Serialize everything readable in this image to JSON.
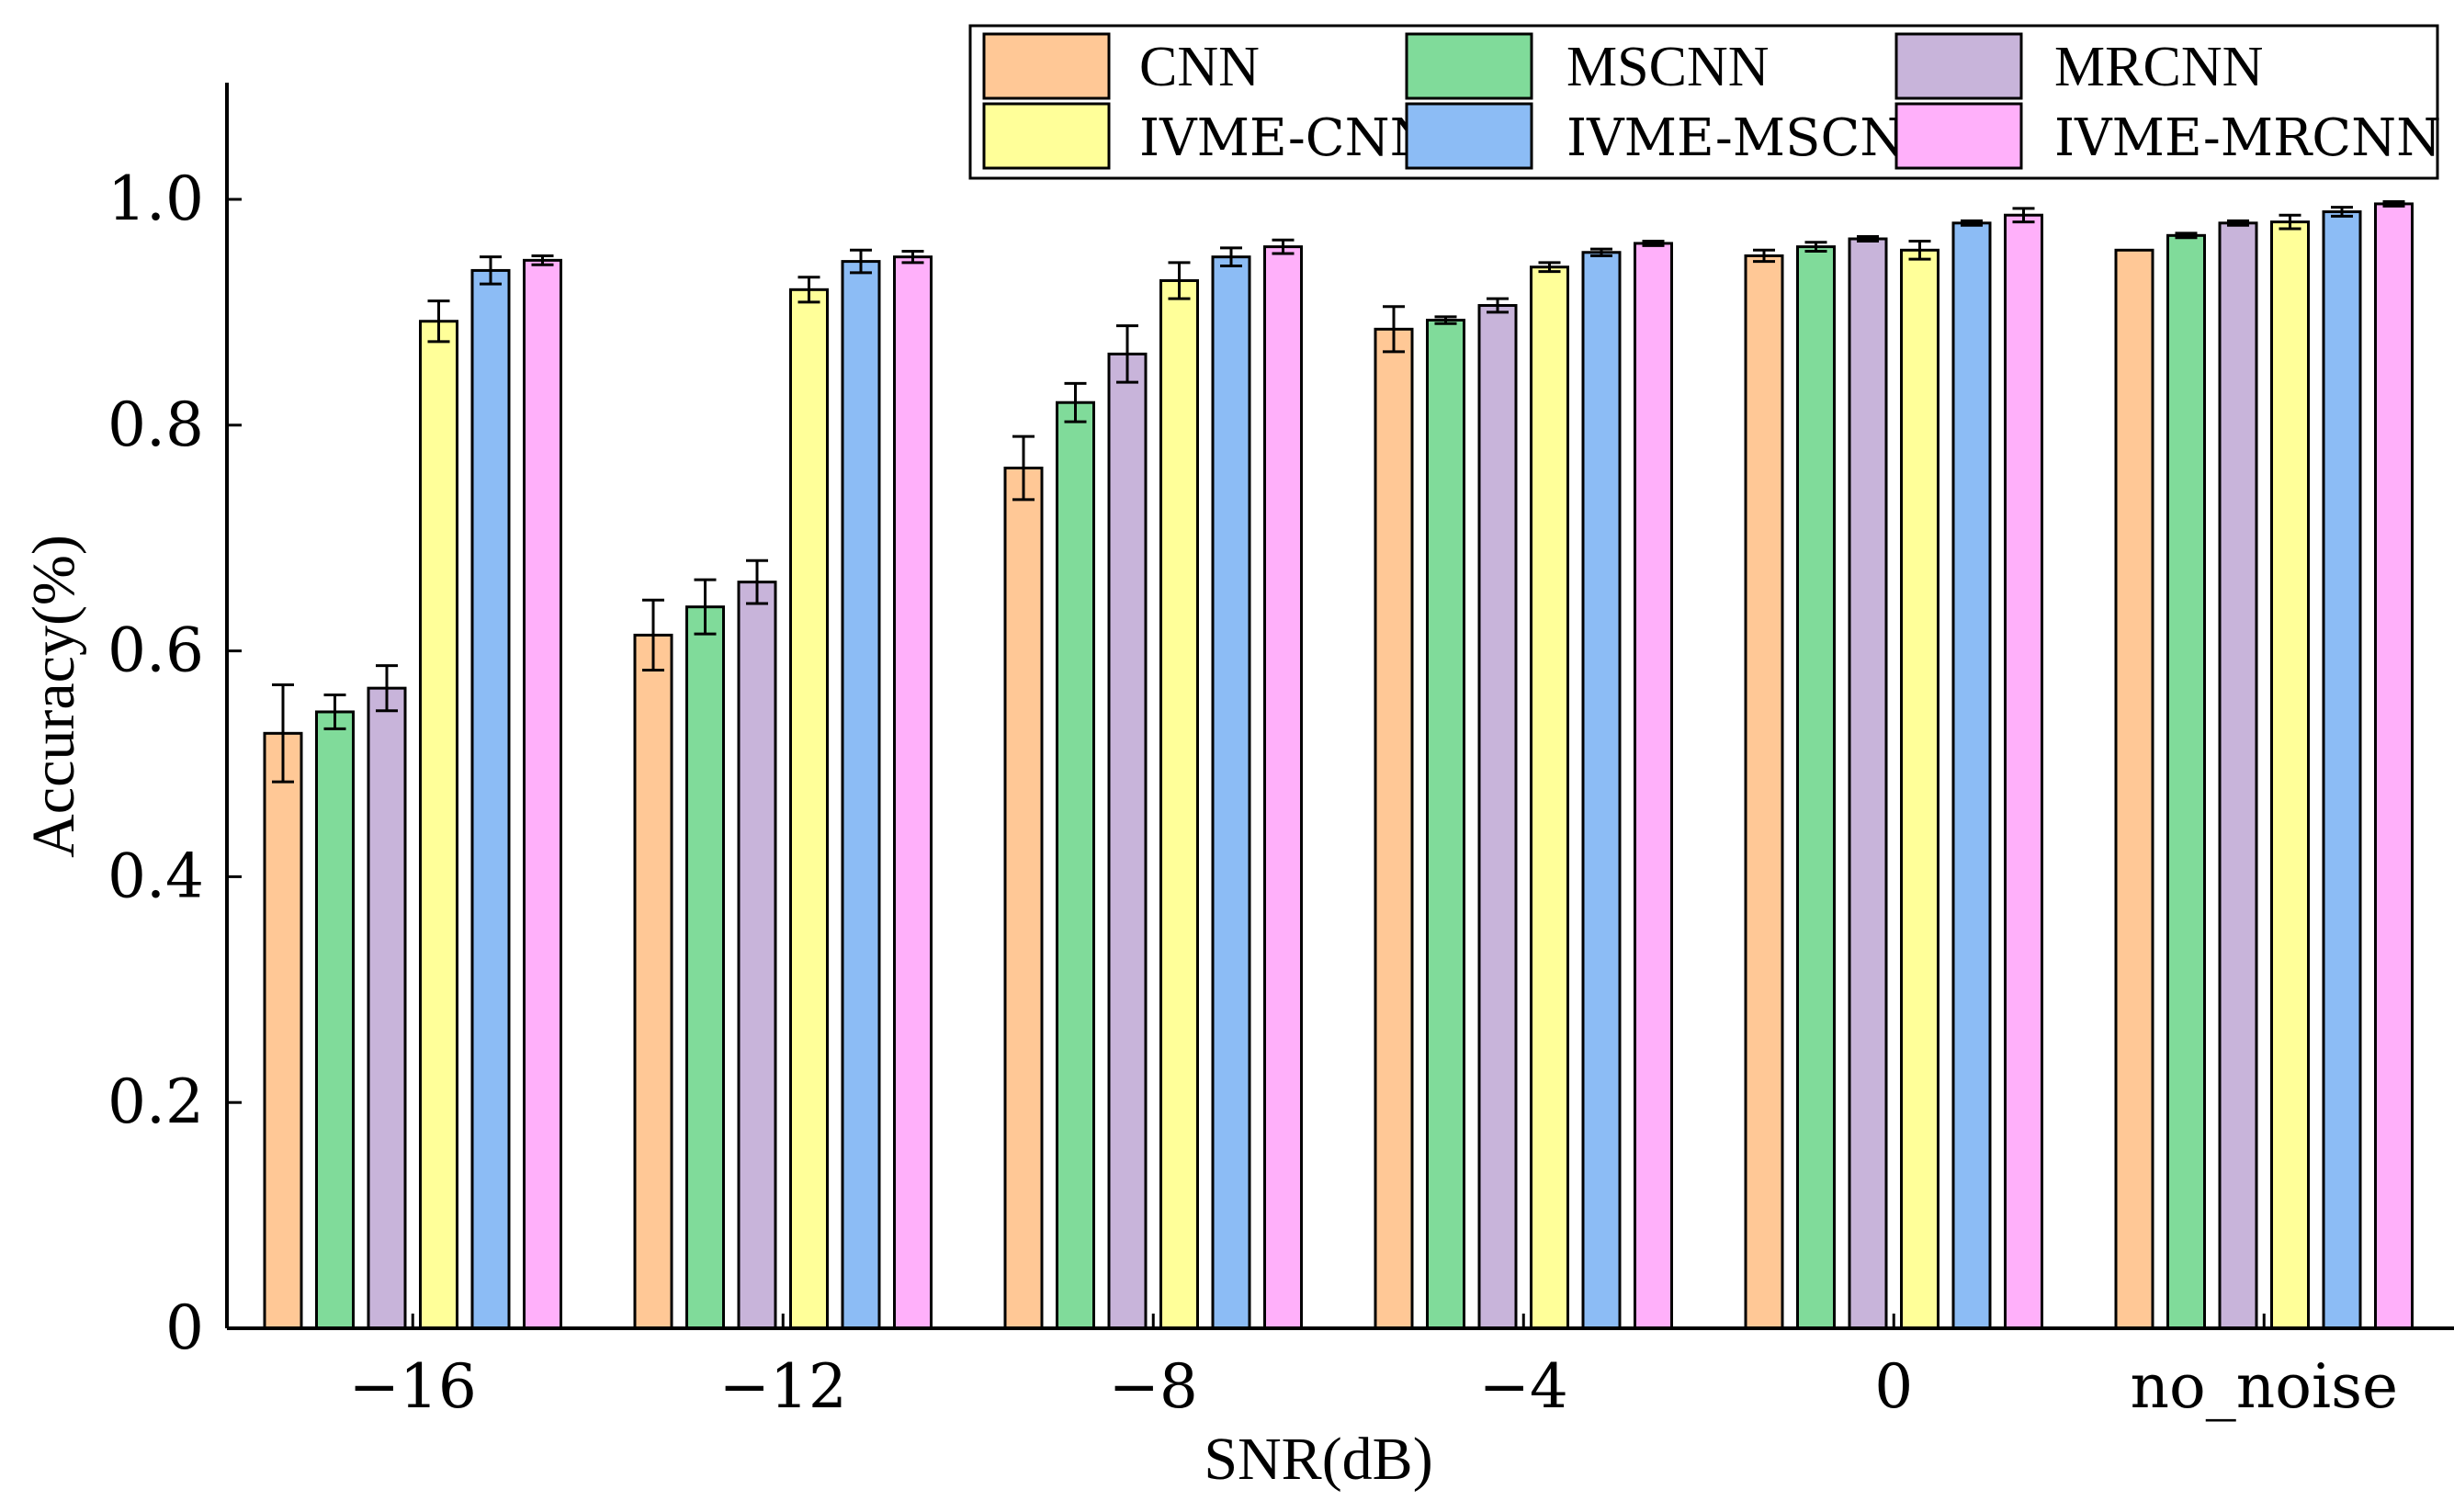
{
  "chart_data": {
    "type": "bar",
    "title": "",
    "xlabel": "SNR(dB)",
    "ylabel": "Accuracy(%)",
    "ylim": [
      0,
      1.1
    ],
    "yticks": [
      "0",
      "0.2",
      "0.4",
      "0.6",
      "0.8",
      "1.0"
    ],
    "ytick_values": [
      0,
      0.2,
      0.4,
      0.6,
      0.8,
      1.0
    ],
    "categories": [
      "−16",
      "−12",
      "−8",
      "−4",
      "0",
      "no_noise"
    ],
    "legend_position": "top-right",
    "series": [
      {
        "name": "CNN",
        "color": "#FFC896",
        "values": [
          0.527,
          0.614,
          0.762,
          0.885,
          0.95,
          0.955
        ],
        "errors": [
          0.043,
          0.031,
          0.028,
          0.02,
          0.005,
          0.0
        ]
      },
      {
        "name": "MSCNN",
        "color": "#80DB9A",
        "values": [
          0.546,
          0.639,
          0.82,
          0.893,
          0.958,
          0.968
        ],
        "errors": [
          0.015,
          0.024,
          0.017,
          0.003,
          0.004,
          0.002
        ]
      },
      {
        "name": "MRCNN",
        "color": "#C8B4DA",
        "values": [
          0.567,
          0.661,
          0.863,
          0.906,
          0.965,
          0.979
        ],
        "errors": [
          0.02,
          0.019,
          0.025,
          0.006,
          0.002,
          0.002
        ]
      },
      {
        "name": "IVME-CNN",
        "color": "#FFFF99",
        "values": [
          0.892,
          0.92,
          0.928,
          0.94,
          0.955,
          0.98
        ],
        "errors": [
          0.018,
          0.011,
          0.016,
          0.004,
          0.008,
          0.006
        ]
      },
      {
        "name": "IVME-MSCNN",
        "color": "#8CBCF5",
        "values": [
          0.937,
          0.945,
          0.949,
          0.953,
          0.979,
          0.989
        ],
        "errors": [
          0.012,
          0.01,
          0.008,
          0.003,
          0.002,
          0.004
        ]
      },
      {
        "name": "IVME-MRCNN",
        "color": "#FFB0FA",
        "values": [
          0.946,
          0.949,
          0.958,
          0.961,
          0.986,
          0.996
        ],
        "errors": [
          0.004,
          0.005,
          0.006,
          0.002,
          0.006,
          0.002
        ]
      }
    ]
  }
}
